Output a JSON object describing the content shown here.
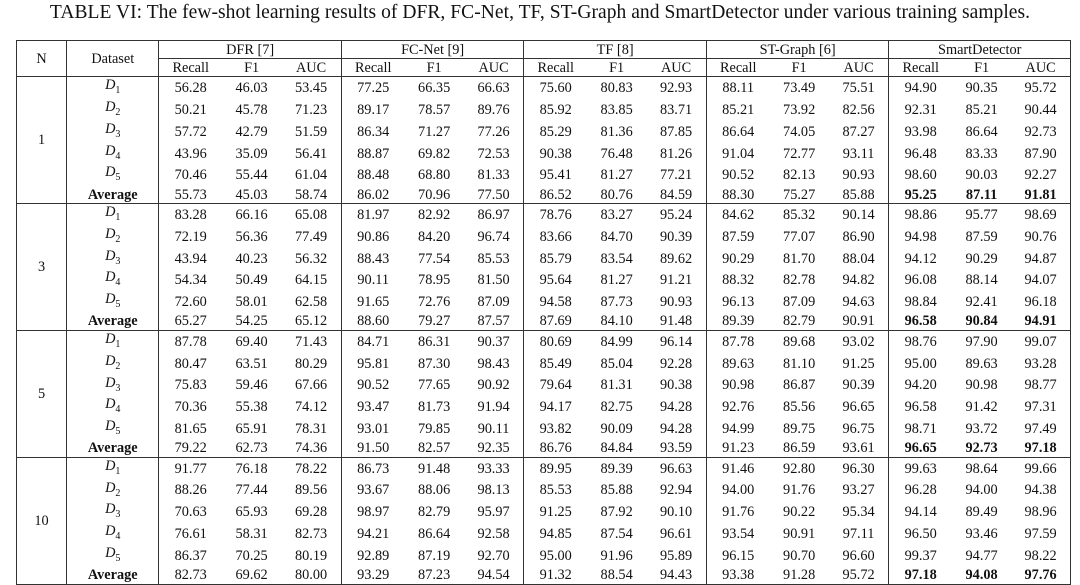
{
  "caption": "TABLE VI: The few-shot learning results of DFR, FC-Net, TF, ST-Graph and SmartDetector under various training samples.",
  "header": {
    "n": "N",
    "dataset": "Dataset",
    "methods": [
      "DFR [7]",
      "FC-Net [9]",
      "TF [8]",
      "ST-Graph [6]",
      "SmartDetector"
    ],
    "metrics": [
      "Recall",
      "F1",
      "AUC"
    ]
  },
  "groups": [
    {
      "n": "1",
      "rows": [
        {
          "ds": "D",
          "sub": "1",
          "v": [
            "56.28",
            "46.03",
            "53.45",
            "77.25",
            "66.35",
            "66.63",
            "75.60",
            "80.83",
            "92.93",
            "88.11",
            "73.49",
            "75.51",
            "94.90",
            "90.35",
            "95.72"
          ]
        },
        {
          "ds": "D",
          "sub": "2",
          "v": [
            "50.21",
            "45.78",
            "71.23",
            "89.17",
            "78.57",
            "89.76",
            "85.92",
            "83.85",
            "83.71",
            "85.21",
            "73.92",
            "82.56",
            "92.31",
            "85.21",
            "90.44"
          ]
        },
        {
          "ds": "D",
          "sub": "3",
          "v": [
            "57.72",
            "42.79",
            "51.59",
            "86.34",
            "71.27",
            "77.26",
            "85.29",
            "81.36",
            "87.85",
            "86.64",
            "74.05",
            "87.27",
            "93.98",
            "86.64",
            "92.73"
          ]
        },
        {
          "ds": "D",
          "sub": "4",
          "v": [
            "43.96",
            "35.09",
            "56.41",
            "88.87",
            "69.82",
            "72.53",
            "90.38",
            "76.48",
            "81.26",
            "91.04",
            "72.77",
            "93.11",
            "96.48",
            "83.33",
            "87.90"
          ]
        },
        {
          "ds": "D",
          "sub": "5",
          "v": [
            "70.46",
            "55.44",
            "61.04",
            "88.48",
            "68.80",
            "81.33",
            "95.41",
            "81.27",
            "77.21",
            "90.52",
            "82.13",
            "90.93",
            "98.60",
            "90.03",
            "92.27"
          ]
        }
      ],
      "average": {
        "label": "Average",
        "v": [
          "55.73",
          "45.03",
          "58.74",
          "86.02",
          "70.96",
          "77.50",
          "86.52",
          "80.76",
          "84.59",
          "88.30",
          "75.27",
          "85.88",
          "95.25",
          "87.11",
          "91.81"
        ]
      }
    },
    {
      "n": "3",
      "rows": [
        {
          "ds": "D",
          "sub": "1",
          "v": [
            "83.28",
            "66.16",
            "65.08",
            "81.97",
            "82.92",
            "86.97",
            "78.76",
            "83.27",
            "95.24",
            "84.62",
            "85.32",
            "90.14",
            "98.86",
            "95.77",
            "98.69"
          ]
        },
        {
          "ds": "D",
          "sub": "2",
          "v": [
            "72.19",
            "56.36",
            "77.49",
            "90.86",
            "84.20",
            "96.74",
            "83.66",
            "84.70",
            "90.39",
            "87.59",
            "77.07",
            "86.90",
            "94.98",
            "87.59",
            "90.76"
          ]
        },
        {
          "ds": "D",
          "sub": "3",
          "v": [
            "43.94",
            "40.23",
            "56.32",
            "88.43",
            "77.54",
            "85.53",
            "85.79",
            "83.54",
            "89.62",
            "90.29",
            "81.70",
            "88.04",
            "94.12",
            "90.29",
            "94.87"
          ]
        },
        {
          "ds": "D",
          "sub": "4",
          "v": [
            "54.34",
            "50.49",
            "64.15",
            "90.11",
            "78.95",
            "81.50",
            "95.64",
            "81.27",
            "91.21",
            "88.32",
            "82.78",
            "94.82",
            "96.08",
            "88.14",
            "94.07"
          ]
        },
        {
          "ds": "D",
          "sub": "5",
          "v": [
            "72.60",
            "58.01",
            "62.58",
            "91.65",
            "72.76",
            "87.09",
            "94.58",
            "87.73",
            "90.93",
            "96.13",
            "87.09",
            "94.63",
            "98.84",
            "92.41",
            "96.18"
          ]
        }
      ],
      "average": {
        "label": "Average",
        "v": [
          "65.27",
          "54.25",
          "65.12",
          "88.60",
          "79.27",
          "87.57",
          "87.69",
          "84.10",
          "91.48",
          "89.39",
          "82.79",
          "90.91",
          "96.58",
          "90.84",
          "94.91"
        ]
      }
    },
    {
      "n": "5",
      "rows": [
        {
          "ds": "D",
          "sub": "1",
          "v": [
            "87.78",
            "69.40",
            "71.43",
            "84.71",
            "86.31",
            "90.37",
            "80.69",
            "84.99",
            "96.14",
            "87.78",
            "89.68",
            "93.02",
            "98.76",
            "97.90",
            "99.07"
          ]
        },
        {
          "ds": "D",
          "sub": "2",
          "v": [
            "80.47",
            "63.51",
            "80.29",
            "95.81",
            "87.30",
            "98.43",
            "85.49",
            "85.04",
            "92.28",
            "89.63",
            "81.10",
            "91.25",
            "95.00",
            "89.63",
            "93.28"
          ]
        },
        {
          "ds": "D",
          "sub": "3",
          "v": [
            "75.83",
            "59.46",
            "67.66",
            "90.52",
            "77.65",
            "90.92",
            "79.64",
            "81.31",
            "90.38",
            "90.98",
            "86.87",
            "90.39",
            "94.20",
            "90.98",
            "98.77"
          ]
        },
        {
          "ds": "D",
          "sub": "4",
          "v": [
            "70.36",
            "55.38",
            "74.12",
            "93.47",
            "81.73",
            "91.94",
            "94.17",
            "82.75",
            "94.28",
            "92.76",
            "85.56",
            "96.65",
            "96.58",
            "91.42",
            "97.31"
          ]
        },
        {
          "ds": "D",
          "sub": "5",
          "v": [
            "81.65",
            "65.91",
            "78.31",
            "93.01",
            "79.85",
            "90.11",
            "93.82",
            "90.09",
            "94.28",
            "94.99",
            "89.75",
            "96.75",
            "98.71",
            "93.72",
            "97.49"
          ]
        }
      ],
      "average": {
        "label": "Average",
        "v": [
          "79.22",
          "62.73",
          "74.36",
          "91.50",
          "82.57",
          "92.35",
          "86.76",
          "84.84",
          "93.59",
          "91.23",
          "86.59",
          "93.61",
          "96.65",
          "92.73",
          "97.18"
        ]
      }
    },
    {
      "n": "10",
      "rows": [
        {
          "ds": "D",
          "sub": "1",
          "v": [
            "91.77",
            "76.18",
            "78.22",
            "86.73",
            "91.48",
            "93.33",
            "89.95",
            "89.39",
            "96.63",
            "91.46",
            "92.80",
            "96.30",
            "99.63",
            "98.64",
            "99.66"
          ]
        },
        {
          "ds": "D",
          "sub": "2",
          "v": [
            "88.26",
            "77.44",
            "89.56",
            "93.67",
            "88.06",
            "98.13",
            "85.53",
            "85.88",
            "92.94",
            "94.00",
            "91.76",
            "93.27",
            "96.28",
            "94.00",
            "94.38"
          ]
        },
        {
          "ds": "D",
          "sub": "3",
          "v": [
            "70.63",
            "65.93",
            "69.28",
            "98.97",
            "82.79",
            "95.97",
            "91.25",
            "87.92",
            "90.10",
            "91.76",
            "90.22",
            "95.34",
            "94.14",
            "89.49",
            "98.96"
          ]
        },
        {
          "ds": "D",
          "sub": "4",
          "v": [
            "76.61",
            "58.31",
            "82.73",
            "94.21",
            "86.64",
            "92.58",
            "94.85",
            "87.54",
            "96.61",
            "93.54",
            "90.91",
            "97.11",
            "96.50",
            "93.46",
            "97.59"
          ]
        },
        {
          "ds": "D",
          "sub": "5",
          "v": [
            "86.37",
            "70.25",
            "80.19",
            "92.89",
            "87.19",
            "92.70",
            "95.00",
            "91.96",
            "95.89",
            "96.15",
            "90.70",
            "96.60",
            "99.37",
            "94.77",
            "98.22"
          ]
        }
      ],
      "average": {
        "label": "Average",
        "v": [
          "82.73",
          "69.62",
          "80.00",
          "93.29",
          "87.23",
          "94.54",
          "91.32",
          "88.54",
          "94.43",
          "93.38",
          "91.28",
          "95.72",
          "97.18",
          "94.08",
          "97.76"
        ]
      }
    }
  ]
}
